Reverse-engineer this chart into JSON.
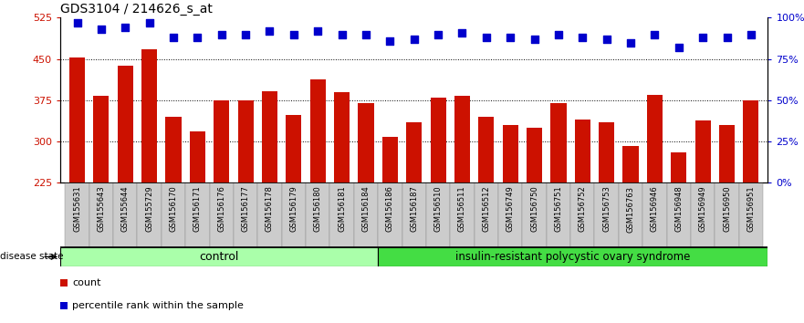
{
  "title": "GDS3104 / 214626_s_at",
  "samples": [
    "GSM155631",
    "GSM155643",
    "GSM155644",
    "GSM155729",
    "GSM156170",
    "GSM156171",
    "GSM156176",
    "GSM156177",
    "GSM156178",
    "GSM156179",
    "GSM156180",
    "GSM156181",
    "GSM156184",
    "GSM156186",
    "GSM156187",
    "GSM156510",
    "GSM156511",
    "GSM156512",
    "GSM156749",
    "GSM156750",
    "GSM156751",
    "GSM156752",
    "GSM156753",
    "GSM156763",
    "GSM156946",
    "GSM156948",
    "GSM156949",
    "GSM156950",
    "GSM156951"
  ],
  "counts": [
    453,
    383,
    438,
    468,
    345,
    318,
    375,
    375,
    392,
    348,
    413,
    390,
    370,
    308,
    335,
    380,
    383,
    345,
    330,
    325,
    370,
    340,
    335,
    291,
    385,
    280,
    338,
    330,
    375
  ],
  "percentile_ranks": [
    97,
    93,
    94,
    97,
    88,
    88,
    90,
    90,
    92,
    90,
    92,
    90,
    90,
    86,
    87,
    90,
    91,
    88,
    88,
    87,
    90,
    88,
    87,
    85,
    90,
    82,
    88,
    88,
    90
  ],
  "control_count": 13,
  "bar_color": "#CC1100",
  "dot_color": "#0000CC",
  "control_color": "#AAFFAA",
  "disease_color": "#44DD44",
  "ylim_left": [
    225,
    525
  ],
  "ylim_right": [
    0,
    100
  ],
  "yticks_left": [
    225,
    300,
    375,
    450,
    525
  ],
  "yticks_right": [
    0,
    25,
    50,
    75,
    100
  ],
  "grid_values": [
    300,
    375,
    450
  ],
  "control_label": "control",
  "disease_label": "insulin-resistant polycystic ovary syndrome",
  "disease_state_label": "disease state",
  "legend_count": "count",
  "legend_pct": "percentile rank within the sample"
}
